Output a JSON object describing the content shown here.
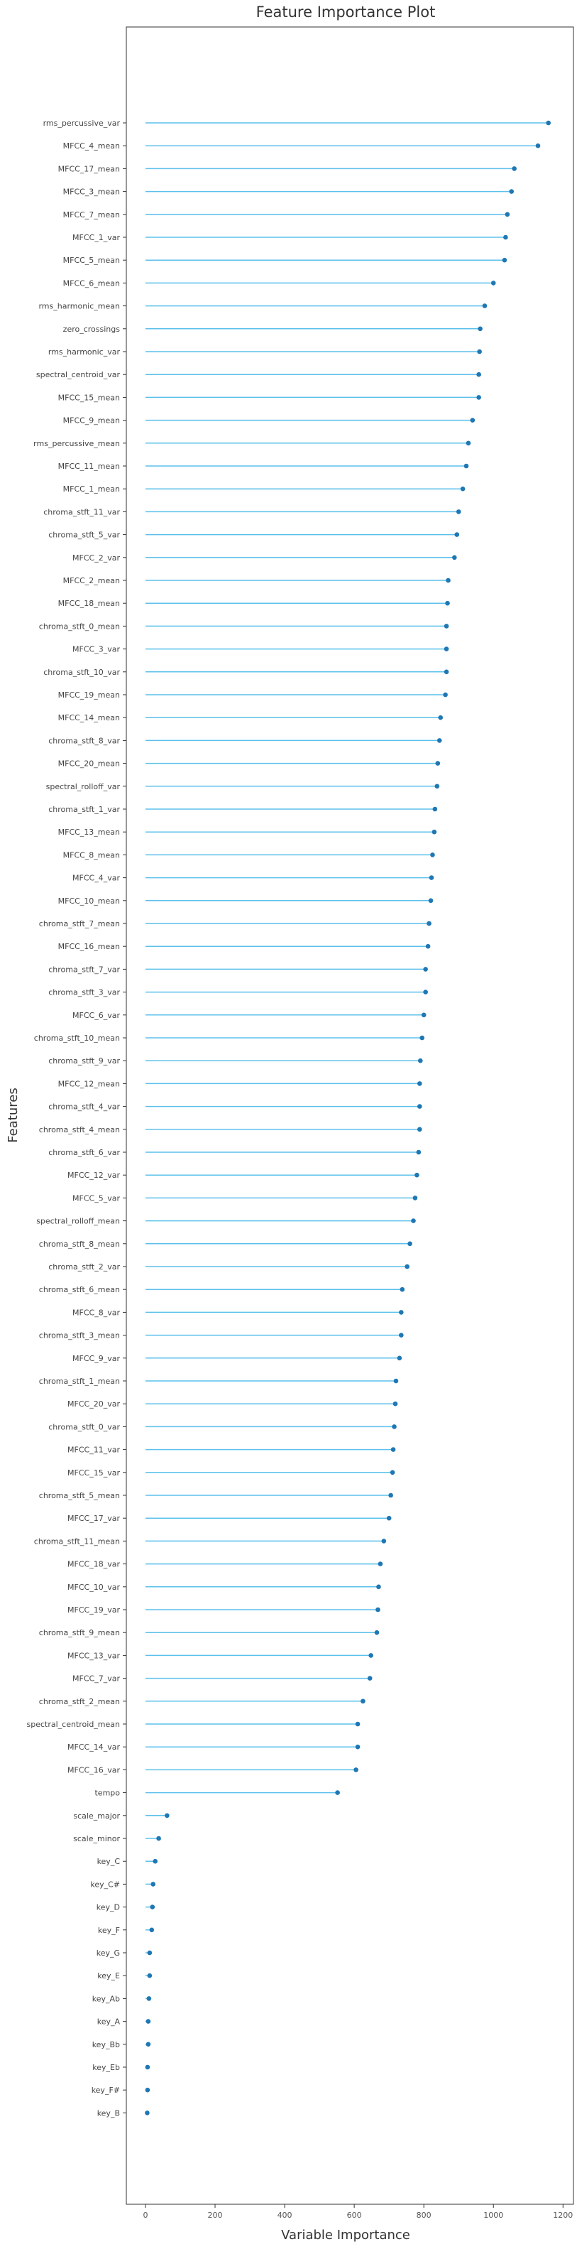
{
  "chart_data": {
    "type": "lollipop",
    "title": "Feature Importance Plot",
    "xlabel": "Variable Importance",
    "ylabel": "Features",
    "xlim": [
      -55,
      1230
    ],
    "xticks": [
      0,
      200,
      400,
      600,
      800,
      1000,
      1200
    ],
    "grid": false,
    "legend": "none",
    "colors": {
      "stem": "#5bc0eb",
      "marker": "#1f77b4",
      "frame": "#333333"
    },
    "categories": [
      "rms_percussive_var",
      "MFCC_4_mean",
      "MFCC_17_mean",
      "MFCC_3_mean",
      "MFCC_7_mean",
      "MFCC_1_var",
      "MFCC_5_mean",
      "MFCC_6_mean",
      "rms_harmonic_mean",
      "zero_crossings",
      "rms_harmonic_var",
      "spectral_centroid_var",
      "MFCC_15_mean",
      "MFCC_9_mean",
      "rms_percussive_mean",
      "MFCC_11_mean",
      "MFCC_1_mean",
      "chroma_stft_11_var",
      "chroma_stft_5_var",
      "MFCC_2_var",
      "MFCC_2_mean",
      "MFCC_18_mean",
      "chroma_stft_0_mean",
      "MFCC_3_var",
      "chroma_stft_10_var",
      "MFCC_19_mean",
      "MFCC_14_mean",
      "chroma_stft_8_var",
      "MFCC_20_mean",
      "spectral_rolloff_var",
      "chroma_stft_1_var",
      "MFCC_13_mean",
      "MFCC_8_mean",
      "MFCC_4_var",
      "MFCC_10_mean",
      "chroma_stft_7_mean",
      "MFCC_16_mean",
      "chroma_stft_7_var",
      "chroma_stft_3_var",
      "MFCC_6_var",
      "chroma_stft_10_mean",
      "chroma_stft_9_var",
      "MFCC_12_mean",
      "chroma_stft_4_var",
      "chroma_stft_4_mean",
      "chroma_stft_6_var",
      "MFCC_12_var",
      "MFCC_5_var",
      "spectral_rolloff_mean",
      "chroma_stft_8_mean",
      "chroma_stft_2_var",
      "chroma_stft_6_mean",
      "MFCC_8_var",
      "chroma_stft_3_mean",
      "MFCC_9_var",
      "chroma_stft_1_mean",
      "MFCC_20_var",
      "chroma_stft_0_var",
      "MFCC_11_var",
      "MFCC_15_var",
      "chroma_stft_5_mean",
      "MFCC_17_var",
      "chroma_stft_11_mean",
      "MFCC_18_var",
      "MFCC_10_var",
      "MFCC_19_var",
      "chroma_stft_9_mean",
      "MFCC_13_var",
      "MFCC_7_var",
      "chroma_stft_2_mean",
      "spectral_centroid_mean",
      "MFCC_14_var",
      "MFCC_16_var",
      "tempo",
      "scale_major",
      "scale_minor",
      "key_C",
      "key_C#",
      "key_D",
      "key_F",
      "key_G",
      "key_E",
      "key_Ab",
      "key_A",
      "key_Bb",
      "key_Eb",
      "key_F#",
      "key_B"
    ],
    "values": [
      1158,
      1128,
      1060,
      1052,
      1040,
      1035,
      1032,
      1000,
      975,
      962,
      960,
      958,
      958,
      940,
      928,
      922,
      912,
      900,
      895,
      888,
      870,
      868,
      865,
      865,
      865,
      862,
      848,
      845,
      840,
      838,
      832,
      830,
      825,
      822,
      820,
      815,
      812,
      805,
      805,
      800,
      795,
      790,
      788,
      788,
      788,
      785,
      780,
      775,
      770,
      760,
      752,
      738,
      735,
      735,
      730,
      720,
      718,
      715,
      712,
      710,
      705,
      700,
      685,
      675,
      670,
      668,
      665,
      648,
      645,
      625,
      610,
      610,
      605,
      552,
      62,
      38,
      28,
      22,
      20,
      18,
      12,
      12,
      10,
      8,
      8,
      6,
      6,
      5
    ]
  }
}
